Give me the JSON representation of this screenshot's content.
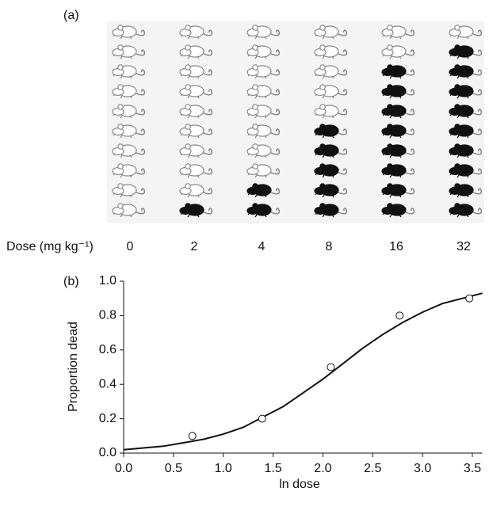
{
  "chart_data": [
    {
      "type": "pictogram",
      "label": "(a)",
      "x_label": "Dose (mg kg⁻¹)",
      "categories": [
        0,
        2,
        4,
        8,
        16,
        32
      ],
      "values": [
        0,
        1,
        2,
        5,
        8,
        9
      ],
      "total": 10
    },
    {
      "type": "scatter",
      "label": "(b)",
      "x_label": "ln dose",
      "y_label": "Proportion dead",
      "x": [
        0.69,
        1.39,
        2.08,
        2.77,
        3.47
      ],
      "values": [
        0.1,
        0.2,
        0.5,
        0.8,
        0.9
      ],
      "fit": {
        "x": [
          0,
          0.2,
          0.4,
          0.6,
          0.8,
          1.0,
          1.2,
          1.4,
          1.6,
          1.8,
          2.0,
          2.2,
          2.4,
          2.6,
          2.8,
          3.0,
          3.2,
          3.4,
          3.6
        ],
        "values": [
          0.02,
          0.03,
          0.04,
          0.06,
          0.08,
          0.11,
          0.15,
          0.21,
          0.27,
          0.35,
          0.43,
          0.52,
          0.61,
          0.69,
          0.76,
          0.82,
          0.87,
          0.9,
          0.93
        ]
      },
      "xlim": [
        0,
        3.6
      ],
      "ylim": [
        0,
        1
      ],
      "xticks": [
        {
          "value": 0,
          "label": "0.0"
        },
        {
          "value": 0.5,
          "label": "0.5"
        },
        {
          "value": 1,
          "label": "1.0"
        },
        {
          "value": 1.5,
          "label": "1.5"
        },
        {
          "value": 2,
          "label": "2.0"
        },
        {
          "value": 2.5,
          "label": "2.5"
        },
        {
          "value": 3,
          "label": "3.0"
        },
        {
          "value": 3.5,
          "label": "3.5"
        }
      ],
      "yticks": [
        {
          "value": 0,
          "label": "0.0"
        },
        {
          "value": 0.2,
          "label": "0.2"
        },
        {
          "value": 0.4,
          "label": "0.4"
        },
        {
          "value": 0.6,
          "label": "0.6"
        },
        {
          "value": 0.8,
          "label": "0.8"
        },
        {
          "value": 1,
          "label": "1.0"
        }
      ]
    }
  ]
}
